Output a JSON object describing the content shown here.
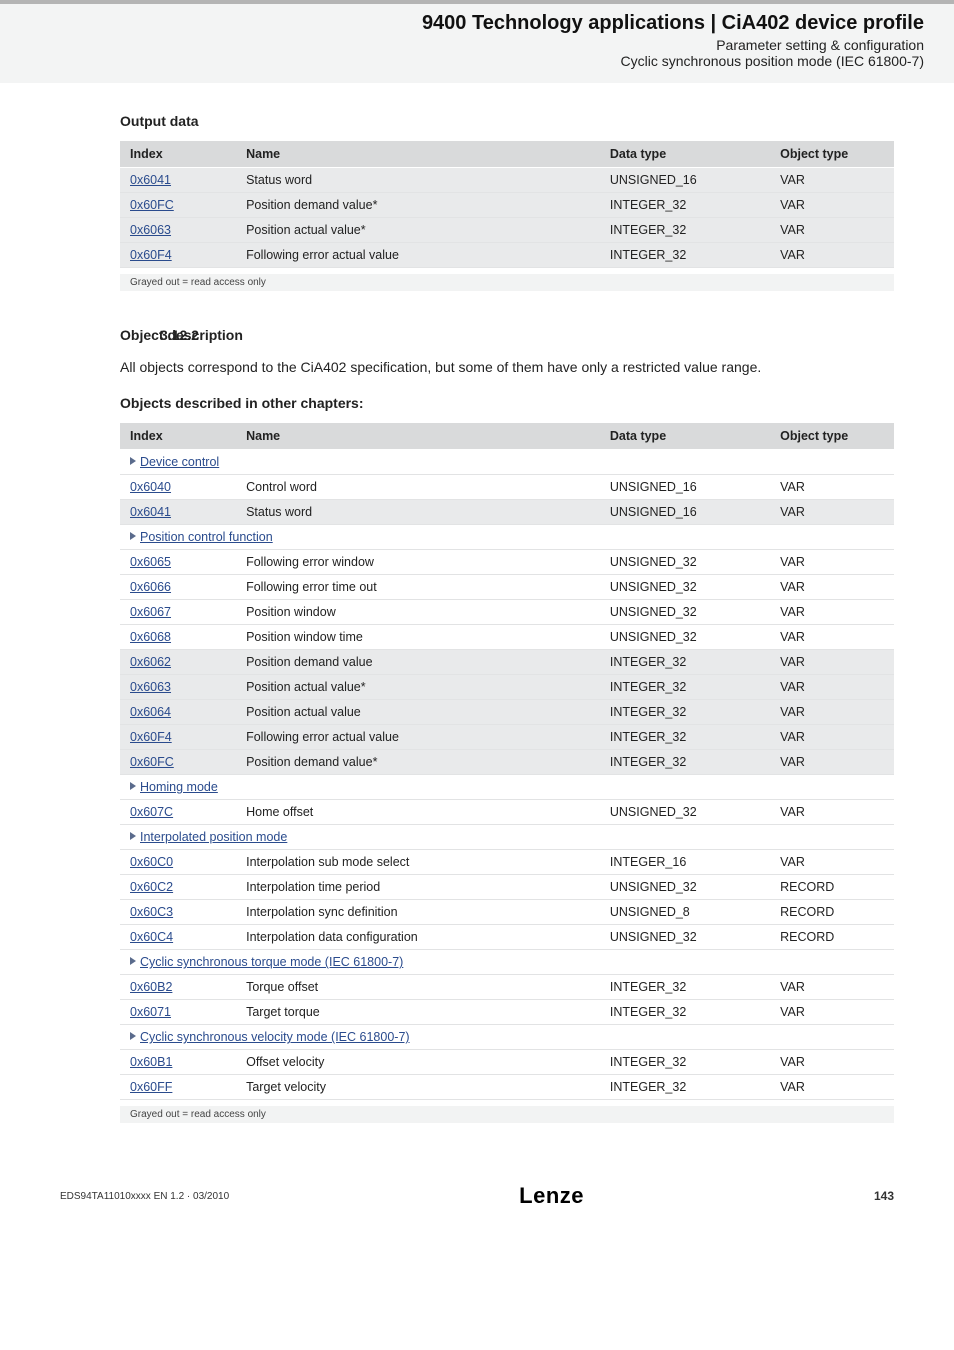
{
  "header": {
    "title": "9400 Technology applications | CiA402 device profile",
    "sub1": "Parameter setting & configuration",
    "sub2": "Cyclic synchronous position mode (IEC 61800-7)"
  },
  "outputData": {
    "label": "Output data",
    "columns": [
      "Index",
      "Name",
      "Data type",
      "Object type"
    ],
    "rows": [
      {
        "index": "0x6041",
        "name": "Status word",
        "dtype": "UNSIGNED_16",
        "otype": "VAR",
        "gray": true
      },
      {
        "index": "0x60FC",
        "name": "Position demand value*",
        "dtype": "INTEGER_32",
        "otype": "VAR",
        "gray": true
      },
      {
        "index": "0x6063",
        "name": "Position actual value*",
        "dtype": "INTEGER_32",
        "otype": "VAR",
        "gray": true
      },
      {
        "index": "0x60F4",
        "name": "Following error actual value",
        "dtype": "INTEGER_32",
        "otype": "VAR",
        "gray": true
      }
    ],
    "footnote": "Grayed out = read access only"
  },
  "section": {
    "number": "3.12.2",
    "heading": "Object description",
    "body": "All objects correspond to the CiA402 specification, but some of them have only a restricted value range.",
    "sublabel": "Objects described in other chapters:"
  },
  "objTable": {
    "columns": [
      "Index",
      "Name",
      "Data type",
      "Object type"
    ],
    "groups": [
      {
        "title": "Device control",
        "rows": [
          {
            "index": "0x6040",
            "name": "Control word",
            "dtype": "UNSIGNED_16",
            "otype": "VAR",
            "gray": false
          },
          {
            "index": "0x6041",
            "name": "Status word",
            "dtype": "UNSIGNED_16",
            "otype": "VAR",
            "gray": true
          }
        ]
      },
      {
        "title": "Position control function",
        "rows": [
          {
            "index": "0x6065",
            "name": "Following error window",
            "dtype": "UNSIGNED_32",
            "otype": "VAR",
            "gray": false
          },
          {
            "index": "0x6066",
            "name": "Following error time out",
            "dtype": "UNSIGNED_32",
            "otype": "VAR",
            "gray": false
          },
          {
            "index": "0x6067",
            "name": "Position window",
            "dtype": "UNSIGNED_32",
            "otype": "VAR",
            "gray": false
          },
          {
            "index": "0x6068",
            "name": "Position window time",
            "dtype": "UNSIGNED_32",
            "otype": "VAR",
            "gray": false
          },
          {
            "index": "0x6062",
            "name": "Position demand value",
            "dtype": "INTEGER_32",
            "otype": "VAR",
            "gray": true
          },
          {
            "index": "0x6063",
            "name": "Position actual value*",
            "dtype": "INTEGER_32",
            "otype": "VAR",
            "gray": true
          },
          {
            "index": "0x6064",
            "name": "Position actual value",
            "dtype": "INTEGER_32",
            "otype": "VAR",
            "gray": true
          },
          {
            "index": "0x60F4",
            "name": "Following error actual value",
            "dtype": "INTEGER_32",
            "otype": "VAR",
            "gray": true
          },
          {
            "index": "0x60FC",
            "name": "Position demand value*",
            "dtype": "INTEGER_32",
            "otype": "VAR",
            "gray": true
          }
        ]
      },
      {
        "title": "Homing mode",
        "rows": [
          {
            "index": "0x607C",
            "name": "Home offset",
            "dtype": "UNSIGNED_32",
            "otype": "VAR",
            "gray": false
          }
        ]
      },
      {
        "title": "Interpolated position mode",
        "rows": [
          {
            "index": "0x60C0",
            "name": "Interpolation sub mode select",
            "dtype": "INTEGER_16",
            "otype": "VAR",
            "gray": false
          },
          {
            "index": "0x60C2",
            "name": "Interpolation time period",
            "dtype": "UNSIGNED_32",
            "otype": "RECORD",
            "gray": false
          },
          {
            "index": "0x60C3",
            "name": "Interpolation sync definition",
            "dtype": "UNSIGNED_8",
            "otype": "RECORD",
            "gray": false
          },
          {
            "index": "0x60C4",
            "name": "Interpolation data configuration",
            "dtype": "UNSIGNED_32",
            "otype": "RECORD",
            "gray": false
          }
        ]
      },
      {
        "title": "Cyclic synchronous torque mode (IEC 61800-7)",
        "rows": [
          {
            "index": "0x60B2",
            "name": "Torque offset",
            "dtype": "INTEGER_32",
            "otype": "VAR",
            "gray": false
          },
          {
            "index": "0x6071",
            "name": "Target torque",
            "dtype": "INTEGER_32",
            "otype": "VAR",
            "gray": false
          }
        ]
      },
      {
        "title": "Cyclic synchronous velocity mode (IEC 61800-7)",
        "rows": [
          {
            "index": "0x60B1",
            "name": "Offset velocity",
            "dtype": "INTEGER_32",
            "otype": "VAR",
            "gray": false
          },
          {
            "index": "0x60FF",
            "name": "Target velocity",
            "dtype": "INTEGER_32",
            "otype": "VAR",
            "gray": false
          }
        ]
      }
    ],
    "footnote": "Grayed out = read access only"
  },
  "footer": {
    "left": "EDS94TA11010xxxx EN 1.2 · 03/2010",
    "logo": "Lenze",
    "page": "143"
  }
}
